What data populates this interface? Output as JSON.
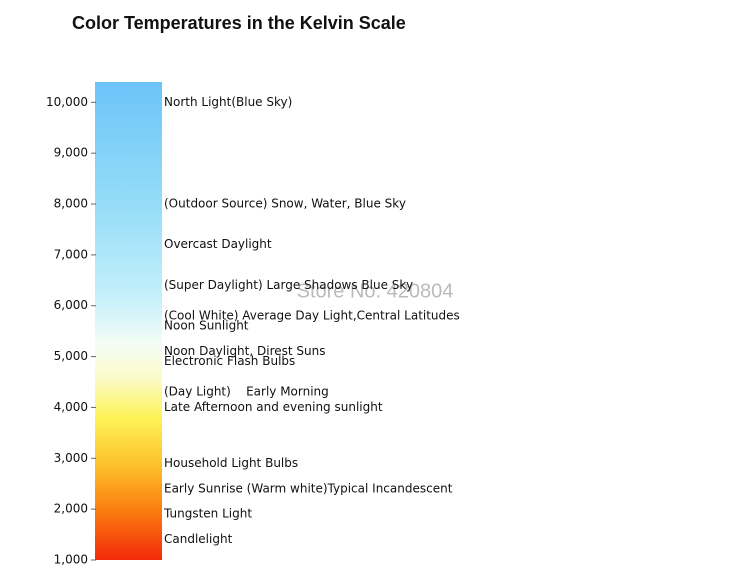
{
  "chart_data": {
    "type": "colorscale",
    "title": "Color Temperatures in the Kelvin Scale",
    "watermark": "Store No. 420804",
    "ylim": [
      1000,
      10400
    ],
    "yticks": [
      {
        "value": 1000,
        "label": "1,000"
      },
      {
        "value": 2000,
        "label": "2,000"
      },
      {
        "value": 3000,
        "label": "3,000"
      },
      {
        "value": 4000,
        "label": "4,000"
      },
      {
        "value": 5000,
        "label": "5,000"
      },
      {
        "value": 6000,
        "label": "6,000"
      },
      {
        "value": 7000,
        "label": "7,000"
      },
      {
        "value": 8000,
        "label": "8,000"
      },
      {
        "value": 9000,
        "label": "9,000"
      },
      {
        "value": 10000,
        "label": "10,000"
      }
    ],
    "annotations": [
      {
        "value": 10000,
        "text": "North Light(Blue Sky)"
      },
      {
        "value": 8000,
        "text": "(Outdoor Source) Snow, Water, Blue Sky"
      },
      {
        "value": 7200,
        "text": "Overcast Daylight"
      },
      {
        "value": 6400,
        "text": "(Super Daylight) Large Shadows Blue Sky"
      },
      {
        "value": 5800,
        "text": "(Cool White) Average Day Light,Central Latitudes"
      },
      {
        "value": 5600,
        "text": "Noon Sunlight"
      },
      {
        "value": 5100,
        "text": "Noon Daylight, Direst Suns"
      },
      {
        "value": 4900,
        "text": "Electronic Flash Bulbs"
      },
      {
        "value": 4300,
        "text": "(Day Light)    Early Morning"
      },
      {
        "value": 4000,
        "text": "Late Afternoon and evening sunlight"
      },
      {
        "value": 2900,
        "text": "Household Light Bulbs"
      },
      {
        "value": 2400,
        "text": "Early Sunrise (Warm white)Typical Incandescent"
      },
      {
        "value": 1900,
        "text": "Tungsten Light"
      },
      {
        "value": 1400,
        "text": "Candlelight"
      }
    ]
  }
}
